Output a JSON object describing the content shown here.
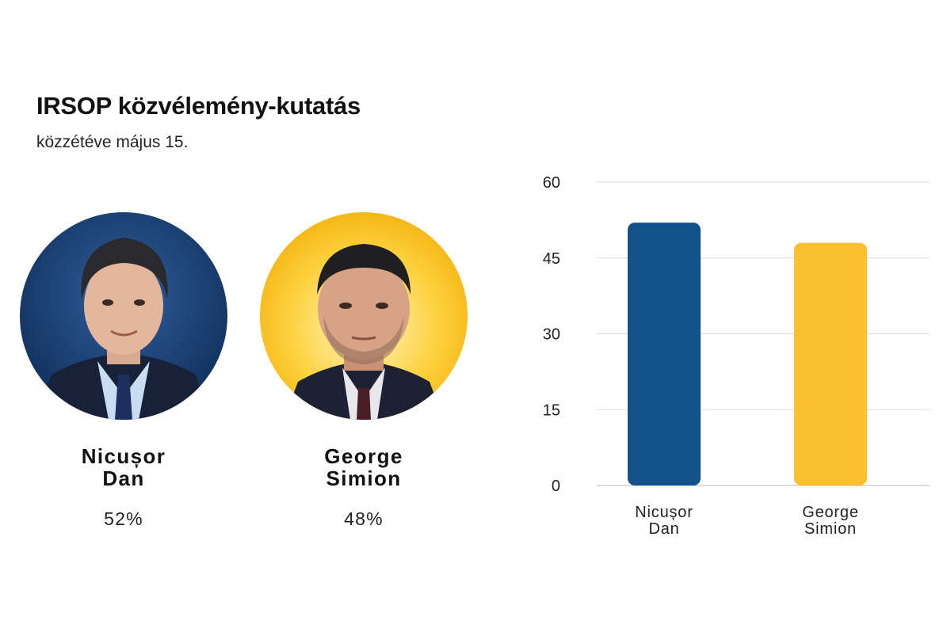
{
  "header": {
    "title": "IRSOP közvélemény-kutatás",
    "subtitle": "közzétéve május 15."
  },
  "candidates": [
    {
      "name": "Nicușor Dan",
      "percent": "52%",
      "color": "#14508a",
      "photo_bg": "#1b3f73"
    },
    {
      "name": "George Simion",
      "percent": "48%",
      "color": "#fbc02d",
      "photo_bg": "#f5b400"
    }
  ],
  "chart_data": {
    "type": "bar",
    "categories": [
      "Nicușor Dan",
      "George Simion"
    ],
    "values": [
      52,
      48
    ],
    "colors": [
      "#14508a",
      "#fbc02d"
    ],
    "yticks": [
      0,
      15,
      30,
      45,
      60
    ],
    "ylim": [
      0,
      60
    ],
    "grid": true,
    "title": "",
    "xlabel": "",
    "ylabel": ""
  }
}
